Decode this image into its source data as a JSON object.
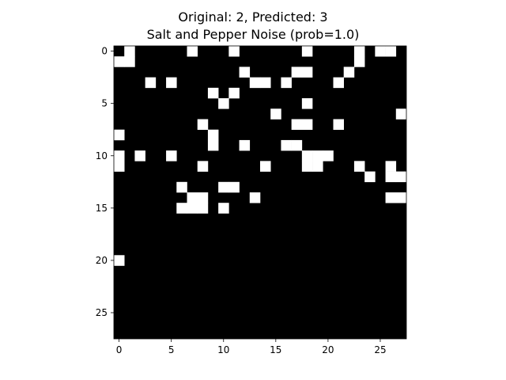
{
  "chart_data": {
    "type": "heatmap",
    "title": "Original: 2, Predicted: 3",
    "subtitle": "Salt and Pepper Noise (prob=1.0)",
    "colormap": "gray",
    "x_ticks": [
      0,
      5,
      10,
      15,
      20,
      25
    ],
    "y_ticks": [
      0,
      5,
      10,
      15,
      20,
      25
    ],
    "xlim": [
      -0.5,
      27.5
    ],
    "ylim": [
      27.5,
      -0.5
    ],
    "grid": false,
    "pixel_values": [
      "0100000100010000001000010110",
      "1100000000000000000000010000",
      "0000000000001000011000100000",
      "0001010000000110100001000000",
      "0000000001010000000000000000",
      "0000000000100000001000000000",
      "0000000000000001000000000001",
      "0000000010000000011001000000",
      "1000000001000000000000000000",
      "0000000001001000110000000000",
      "1010010000000000001110000000",
      "1000000010000010001100010010",
      "0000000000000000000000001011",
      "0000001000110000000000000000",
      "0000000110000100000000000011",
      "0000001110100000000000000000",
      "0000000000000000000000000000",
      "0000000000000000000000000000",
      "0000000000000000000000000000",
      "0000000000000000000000000000",
      "1000000000000000000000000000",
      "0000000000000000000000000000",
      "0000000000000000000000000000",
      "0000000000000000000000000000",
      "0000000000000000000000000000",
      "0000000000000000000000000000",
      "0000000000000000000000000000",
      "0000000000000000000000000000"
    ],
    "gray_pixels": []
  }
}
